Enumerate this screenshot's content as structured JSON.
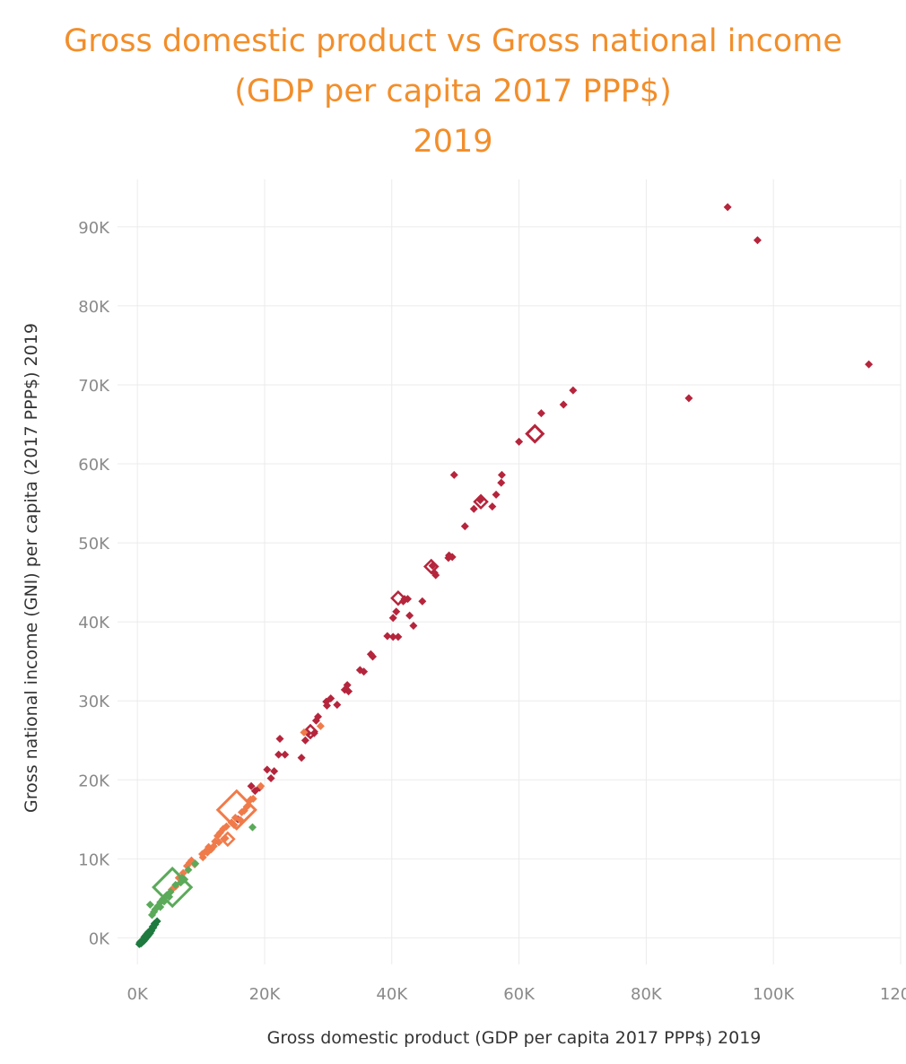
{
  "chart_data": {
    "type": "scatter",
    "title": [
      "Gross domestic product vs Gross national income",
      "(GDP per capita 2017 PPP$)",
      "2019"
    ],
    "xlabel": "Gross domestic product (GDP per capita 2017 PPP$) 2019",
    "ylabel": "Gross national income (GNI) per capita (2017 PPP$)  2019",
    "xlim": [
      -2000,
      120000
    ],
    "ylim": [
      -2000,
      96000
    ],
    "x_ticks": [
      0,
      20000,
      40000,
      60000,
      80000,
      100000,
      120000
    ],
    "x_tick_labels": [
      "0K",
      "20K",
      "40K",
      "60K",
      "80K",
      "100K",
      "120K"
    ],
    "y_ticks": [
      0,
      10000,
      20000,
      30000,
      40000,
      50000,
      60000,
      70000,
      80000,
      90000
    ],
    "y_tick_labels": [
      "0K",
      "10K",
      "20K",
      "30K",
      "40K",
      "50K",
      "60K",
      "70K",
      "80K",
      "90K"
    ],
    "grid": true,
    "colors": {
      "very_high": "#B5253C",
      "high": "#F07B4A",
      "medium": "#5AAA5A",
      "low": "#1E7A3E"
    },
    "series": [
      {
        "group": "very_high",
        "points": [
          [
            92800,
            92500
          ],
          [
            97500,
            88300
          ],
          [
            115000,
            72600
          ],
          [
            86700,
            68300
          ],
          [
            68500,
            69300
          ],
          [
            67000,
            67500
          ],
          [
            63500,
            66400
          ],
          [
            60000,
            62800
          ],
          [
            62500,
            63800,
            "hollow_large"
          ],
          [
            49800,
            58600
          ],
          [
            57300,
            58600
          ],
          [
            57200,
            57600
          ],
          [
            56400,
            56100
          ],
          [
            53900,
            55400
          ],
          [
            52900,
            54300
          ],
          [
            55800,
            54600
          ],
          [
            54000,
            55200,
            "hollow"
          ],
          [
            51500,
            52100
          ],
          [
            49000,
            48400
          ],
          [
            49500,
            48200
          ],
          [
            48900,
            48100
          ],
          [
            46400,
            47100
          ],
          [
            46200,
            47000,
            "hollow"
          ],
          [
            46900,
            45900
          ],
          [
            46700,
            46200
          ],
          [
            44800,
            42600
          ],
          [
            41000,
            43000,
            "hollow"
          ],
          [
            42000,
            42900
          ],
          [
            41800,
            42600
          ],
          [
            42500,
            42900
          ],
          [
            40700,
            41300
          ],
          [
            40200,
            40500
          ],
          [
            42800,
            40800
          ],
          [
            43400,
            39500
          ],
          [
            41000,
            38100
          ],
          [
            40200,
            38100
          ],
          [
            39300,
            38200
          ],
          [
            36700,
            35900
          ],
          [
            37000,
            35600
          ],
          [
            35600,
            33700
          ],
          [
            35000,
            33900
          ],
          [
            33000,
            32000
          ],
          [
            32600,
            31400
          ],
          [
            33200,
            31200
          ],
          [
            30400,
            30300
          ],
          [
            29700,
            29900
          ],
          [
            31400,
            29500
          ],
          [
            29800,
            29400
          ],
          [
            28400,
            28000
          ],
          [
            28100,
            27500
          ],
          [
            27200,
            26100,
            "hollow"
          ],
          [
            27800,
            25900
          ],
          [
            26800,
            25900
          ],
          [
            26400,
            25000
          ],
          [
            22400,
            25200
          ],
          [
            22200,
            23200
          ],
          [
            23200,
            23200
          ],
          [
            25800,
            22800
          ],
          [
            20400,
            21300
          ],
          [
            21500,
            21100
          ],
          [
            21000,
            20200
          ],
          [
            19200,
            19000
          ],
          [
            18500,
            18600
          ],
          [
            17900,
            19200
          ],
          [
            15800,
            15000
          ]
        ]
      },
      {
        "group": "high",
        "points": [
          [
            15600,
            16200,
            "hollow_xl"
          ],
          [
            28800,
            26800
          ],
          [
            26200,
            26000
          ],
          [
            19400,
            19200
          ],
          [
            18200,
            17600
          ],
          [
            17800,
            17500
          ],
          [
            17200,
            16600
          ],
          [
            16800,
            16100
          ],
          [
            16400,
            15900
          ],
          [
            15400,
            15200
          ],
          [
            14800,
            14600
          ],
          [
            14000,
            14100
          ],
          [
            13500,
            13800
          ],
          [
            13000,
            13300
          ],
          [
            12600,
            12900
          ],
          [
            14200,
            12500,
            "hollow"
          ],
          [
            12200,
            12200
          ],
          [
            12000,
            11600
          ],
          [
            11200,
            11500
          ],
          [
            11600,
            11200
          ],
          [
            10800,
            11000
          ],
          [
            10200,
            10600
          ],
          [
            11000,
            10800
          ],
          [
            10300,
            10200
          ],
          [
            8500,
            9800
          ],
          [
            8200,
            9500
          ],
          [
            7800,
            9100
          ],
          [
            9000,
            9300
          ],
          [
            7200,
            8200
          ],
          [
            6500,
            7600
          ],
          [
            6000,
            6500
          ],
          [
            5400,
            6100
          ],
          [
            12800,
            12100
          ],
          [
            15200,
            14300
          ],
          [
            16200,
            14900
          ],
          [
            13800,
            12600
          ]
        ]
      },
      {
        "group": "medium",
        "points": [
          [
            5500,
            6400,
            "hollow_xl"
          ],
          [
            18100,
            14000
          ],
          [
            9100,
            9400
          ],
          [
            8000,
            8600
          ],
          [
            7400,
            7400
          ],
          [
            6800,
            7000
          ],
          [
            6000,
            6700
          ],
          [
            5200,
            5800
          ],
          [
            4600,
            5400
          ],
          [
            4000,
            4900
          ],
          [
            3600,
            4500
          ],
          [
            2000,
            4200
          ],
          [
            3200,
            4000
          ],
          [
            2800,
            3600
          ],
          [
            2600,
            3300
          ],
          [
            2300,
            2900
          ],
          [
            3600,
            3900
          ],
          [
            4200,
            4600
          ],
          [
            5000,
            5200
          ],
          [
            7000,
            7600
          ]
        ]
      },
      {
        "group": "low",
        "points": [
          [
            300,
            -800
          ],
          [
            450,
            -700
          ],
          [
            600,
            -600
          ],
          [
            800,
            -500
          ],
          [
            1000,
            -400
          ],
          [
            1200,
            -200
          ],
          [
            1400,
            0
          ],
          [
            1600,
            200
          ],
          [
            1800,
            400
          ],
          [
            2000,
            600
          ],
          [
            2200,
            900
          ],
          [
            2500,
            1300
          ],
          [
            2800,
            1700
          ],
          [
            3100,
            2100
          ],
          [
            900,
            -300
          ],
          [
            1100,
            100
          ],
          [
            500,
            -500
          ],
          [
            700,
            -400
          ],
          [
            1300,
            300
          ],
          [
            1500,
            500
          ],
          [
            1700,
            700
          ],
          [
            2100,
            1000
          ],
          [
            2400,
            1400
          ],
          [
            2700,
            1800
          ],
          [
            600,
            -700
          ],
          [
            400,
            -600
          ]
        ]
      }
    ]
  }
}
